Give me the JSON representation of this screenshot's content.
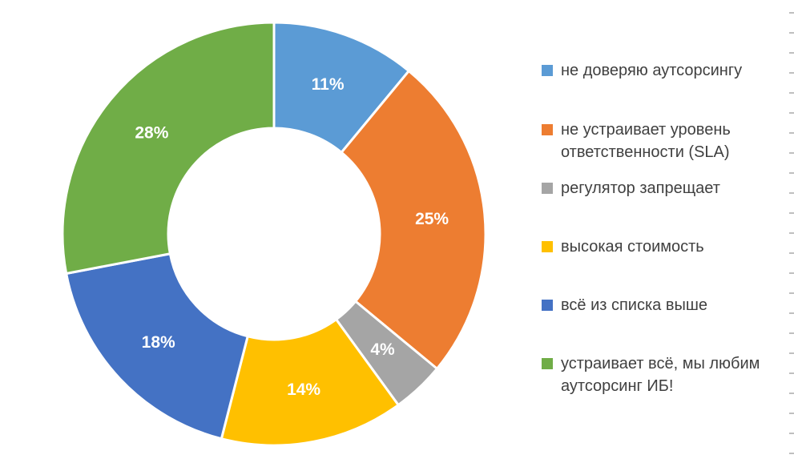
{
  "chart_data": {
    "type": "pie",
    "subtype": "donut",
    "title": "",
    "categories": [
      "не доверяю аутсорсингу",
      "не устраивает уровень ответственности (SLA)",
      "регулятор запрещает",
      "высокая стоимость",
      "всё из списка выше",
      "устраивает всё, мы любим аутсорсинг ИБ!"
    ],
    "values": [
      11,
      25,
      4,
      14,
      18,
      28
    ],
    "slice_labels": [
      "11%",
      "25%",
      "4%",
      "14%",
      "18%",
      "28%"
    ],
    "colors": [
      "#5B9BD5",
      "#ED7D31",
      "#A5A5A5",
      "#FFC000",
      "#4472C4",
      "#70AD47"
    ],
    "start_angle_deg": 0,
    "direction": "clockwise",
    "inner_radius_ratio": 0.5,
    "slice_label_color": "#FFFFFF",
    "slice_border_color": "#FFFFFF",
    "legend_position": "right",
    "background": "#FFFFFF"
  },
  "legend": {
    "items": [
      {
        "label": "не доверяю аутсорсингу",
        "color": "#5B9BD5"
      },
      {
        "label": "не устраивает уровень ответственности (SLA)",
        "color": "#ED7D31"
      },
      {
        "label": "регулятор запрещает",
        "color": "#A5A5A5"
      },
      {
        "label": "высокая стоимость",
        "color": "#FFC000"
      },
      {
        "label": "всё из списка выше",
        "color": "#4472C4"
      },
      {
        "label": "устраивает всё, мы любим аутсорсинг ИБ!",
        "color": "#70AD47"
      }
    ],
    "text_color": "#404040"
  },
  "decor": {
    "right_edge_tick_color": "#BFBFBF",
    "right_edge_tick_count": 23
  }
}
